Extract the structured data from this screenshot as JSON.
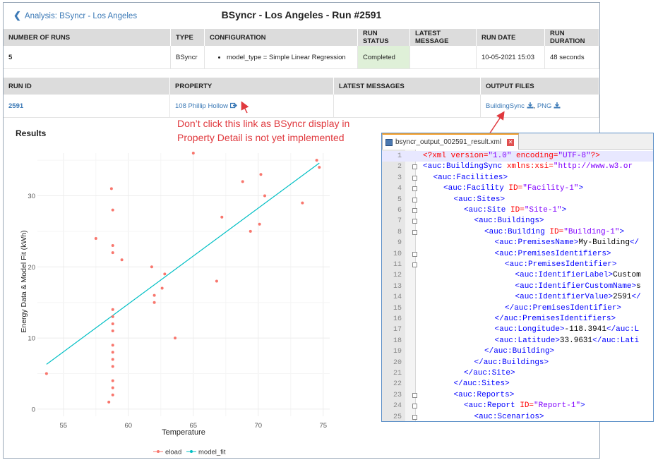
{
  "header": {
    "back_label": "Analysis: BSyncr - Los Angeles",
    "title": "BSyncr - Los Angeles - Run #2591"
  },
  "summary_table": {
    "columns": [
      "NUMBER OF RUNS",
      "TYPE",
      "CONFIGURATION",
      "RUN STATUS",
      "LATEST MESSAGE",
      "RUN DATE",
      "RUN DURATION"
    ],
    "row": {
      "runs": "5",
      "type": "BSyncr",
      "config": "model_type = Simple Linear Regression",
      "status": "Completed",
      "message": "",
      "date": "10-05-2021 15:03",
      "duration": "48 seconds"
    }
  },
  "run_table": {
    "columns": [
      "RUN ID",
      "PROPERTY",
      "LATEST MESSAGES",
      "OUTPUT FILES"
    ],
    "row": {
      "run_id": "2591",
      "property": "108 Phillip Hollow",
      "messages": "",
      "file_bsync": "BuildingSync",
      "file_sep": ", ",
      "file_png": "PNG"
    }
  },
  "annotation": {
    "line1": "Don’t click this link as BSyncr display in",
    "line2": "Property Detail is not yet implemented"
  },
  "results_title": "Results",
  "chart_data": {
    "type": "scatter",
    "xlabel": "Temperature",
    "ylabel": "Energy Data & Model Fit (kWh)",
    "xlim": [
      53,
      75.5
    ],
    "ylim": [
      -1,
      36
    ],
    "x_ticks": [
      55,
      60,
      65,
      70,
      75
    ],
    "y_ticks": [
      0,
      10,
      20,
      30
    ],
    "series": [
      {
        "name": "eload",
        "color": "#f8766d",
        "points": [
          [
            53.7,
            5
          ],
          [
            57.5,
            24
          ],
          [
            58.5,
            1
          ],
          [
            58.7,
            31
          ],
          [
            58.8,
            28
          ],
          [
            58.8,
            23
          ],
          [
            58.8,
            22
          ],
          [
            58.8,
            14
          ],
          [
            58.8,
            13
          ],
          [
            58.8,
            12
          ],
          [
            58.8,
            11
          ],
          [
            58.8,
            9
          ],
          [
            58.8,
            8
          ],
          [
            58.8,
            7
          ],
          [
            58.8,
            6
          ],
          [
            58.8,
            4
          ],
          [
            58.8,
            3
          ],
          [
            58.8,
            2
          ],
          [
            59.5,
            21
          ],
          [
            61.8,
            20
          ],
          [
            62.0,
            16
          ],
          [
            62.0,
            15
          ],
          [
            62.6,
            17
          ],
          [
            62.8,
            19
          ],
          [
            63.6,
            10
          ],
          [
            65.0,
            36
          ],
          [
            66.8,
            18
          ],
          [
            67.2,
            27
          ],
          [
            68.8,
            32
          ],
          [
            69.4,
            25
          ],
          [
            70.1,
            26
          ],
          [
            70.2,
            33
          ],
          [
            70.5,
            30
          ],
          [
            73.4,
            29
          ],
          [
            74.5,
            35
          ],
          [
            74.7,
            34
          ]
        ]
      },
      {
        "name": "model_fit",
        "color": "#00bfc4",
        "line": [
          [
            53.7,
            6.3
          ],
          [
            74.7,
            34.6
          ]
        ]
      }
    ],
    "legend_position": "bottom"
  },
  "xml_editor": {
    "tab_title": "bsyncr_output_002591_result.xml",
    "lines": [
      {
        "n": "1",
        "indent": 0,
        "parts": [
          [
            "pi",
            "<?xml "
          ],
          [
            "at",
            "version="
          ],
          [
            "av",
            "\"1.0\""
          ],
          [
            "at",
            " encoding="
          ],
          [
            "av",
            "\"UTF-8\""
          ],
          [
            "pi",
            "?>"
          ]
        ]
      },
      {
        "n": "2",
        "indent": 0,
        "parts": [
          [
            "tg",
            "<auc:BuildingSync "
          ],
          [
            "at",
            "xmlns:xsi="
          ],
          [
            "av",
            "\"http://www.w3.or"
          ]
        ]
      },
      {
        "n": "3",
        "indent": 1,
        "parts": [
          [
            "tg",
            "<auc:Facilities>"
          ]
        ]
      },
      {
        "n": "4",
        "indent": 2,
        "parts": [
          [
            "tg",
            "<auc:Facility "
          ],
          [
            "at",
            "ID="
          ],
          [
            "av",
            "\"Facility-1\""
          ],
          [
            "tg",
            ">"
          ]
        ]
      },
      {
        "n": "5",
        "indent": 3,
        "parts": [
          [
            "tg",
            "<auc:Sites>"
          ]
        ]
      },
      {
        "n": "6",
        "indent": 4,
        "parts": [
          [
            "tg",
            "<auc:Site "
          ],
          [
            "at",
            "ID="
          ],
          [
            "av",
            "\"Site-1\""
          ],
          [
            "tg",
            ">"
          ]
        ]
      },
      {
        "n": "7",
        "indent": 5,
        "parts": [
          [
            "tg",
            "<auc:Buildings>"
          ]
        ]
      },
      {
        "n": "8",
        "indent": 6,
        "parts": [
          [
            "tg",
            "<auc:Building "
          ],
          [
            "at",
            "ID="
          ],
          [
            "av",
            "\"Building-1\""
          ],
          [
            "tg",
            ">"
          ]
        ]
      },
      {
        "n": "9",
        "indent": 7,
        "parts": [
          [
            "tg",
            "<auc:PremisesName>"
          ],
          [
            "tx",
            "My-Building"
          ],
          [
            "tg",
            "</"
          ]
        ]
      },
      {
        "n": "10",
        "indent": 7,
        "parts": [
          [
            "tg",
            "<auc:PremisesIdentifiers>"
          ]
        ]
      },
      {
        "n": "11",
        "indent": 8,
        "parts": [
          [
            "tg",
            "<auc:PremisesIdentifier>"
          ]
        ]
      },
      {
        "n": "12",
        "indent": 9,
        "parts": [
          [
            "tg",
            "<auc:IdentifierLabel>"
          ],
          [
            "tx",
            "Custom"
          ]
        ]
      },
      {
        "n": "13",
        "indent": 9,
        "parts": [
          [
            "tg",
            "<auc:IdentifierCustomName>"
          ],
          [
            "tx",
            "s"
          ]
        ]
      },
      {
        "n": "14",
        "indent": 9,
        "parts": [
          [
            "tg",
            "<auc:IdentifierValue>"
          ],
          [
            "tx",
            "2591"
          ],
          [
            "tg",
            "</"
          ]
        ]
      },
      {
        "n": "15",
        "indent": 8,
        "parts": [
          [
            "tg",
            "</auc:PremisesIdentifier>"
          ]
        ]
      },
      {
        "n": "16",
        "indent": 7,
        "parts": [
          [
            "tg",
            "</auc:PremisesIdentifiers>"
          ]
        ]
      },
      {
        "n": "17",
        "indent": 7,
        "parts": [
          [
            "tg",
            "<auc:Longitude>"
          ],
          [
            "tx",
            "-118.3941"
          ],
          [
            "tg",
            "</auc:L"
          ]
        ]
      },
      {
        "n": "18",
        "indent": 7,
        "parts": [
          [
            "tg",
            "<auc:Latitude>"
          ],
          [
            "tx",
            "33.9631"
          ],
          [
            "tg",
            "</auc:Lati"
          ]
        ]
      },
      {
        "n": "19",
        "indent": 6,
        "parts": [
          [
            "tg",
            "</auc:Building>"
          ]
        ]
      },
      {
        "n": "20",
        "indent": 5,
        "parts": [
          [
            "tg",
            "</auc:Buildings>"
          ]
        ]
      },
      {
        "n": "21",
        "indent": 4,
        "parts": [
          [
            "tg",
            "</auc:Site>"
          ]
        ]
      },
      {
        "n": "22",
        "indent": 3,
        "parts": [
          [
            "tg",
            "</auc:Sites>"
          ]
        ]
      },
      {
        "n": "23",
        "indent": 3,
        "parts": [
          [
            "tg",
            "<auc:Reports>"
          ]
        ]
      },
      {
        "n": "24",
        "indent": 4,
        "parts": [
          [
            "tg",
            "<auc:Report "
          ],
          [
            "at",
            "ID="
          ],
          [
            "av",
            "\"Report-1\""
          ],
          [
            "tg",
            ">"
          ]
        ]
      },
      {
        "n": "25",
        "indent": 5,
        "parts": [
          [
            "tg",
            "<auc:Scenarios>"
          ]
        ]
      }
    ],
    "fold_lines": [
      2,
      3,
      4,
      5,
      6,
      7,
      8,
      10,
      11,
      23,
      24,
      25
    ]
  }
}
